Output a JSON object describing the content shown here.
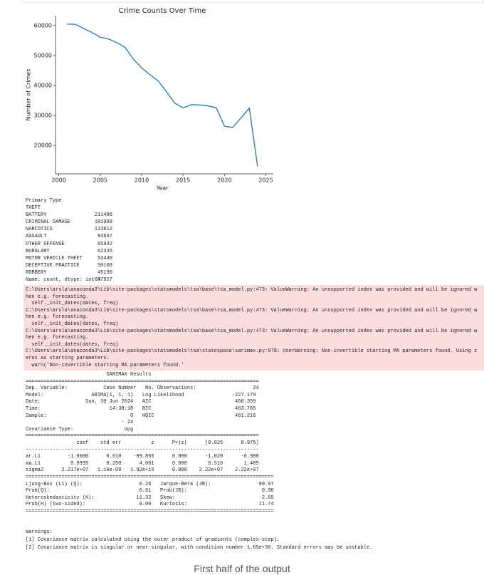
{
  "chart_data": {
    "type": "line",
    "title": "Crime Counts Over Time",
    "x_label": "Year",
    "y_label": "Number of Crimes",
    "x": [
      2001,
      2002,
      2003,
      2004,
      2005,
      2006,
      2007,
      2008,
      2009,
      2010,
      2011,
      2012,
      2013,
      2014,
      2015,
      2016,
      2017,
      2018,
      2019,
      2020,
      2021,
      2022,
      2023,
      2024
    ],
    "series": [
      {
        "name": "Crime Counts",
        "color": "#1f77b4",
        "values": [
          60500,
          60400,
          59000,
          57700,
          56100,
          55500,
          54300,
          52700,
          48800,
          45900,
          43600,
          41500,
          37900,
          34100,
          32500,
          33600,
          33500,
          33200,
          32600,
          26400,
          26000,
          29200,
          32400,
          13000
        ]
      }
    ],
    "xlim": [
      1999.6,
      2025.9
    ],
    "xticks": [
      2000,
      2005,
      2010,
      2015,
      2020,
      2025
    ],
    "ylim": [
      10500,
      63300
    ],
    "yticks": [
      20000,
      30000,
      40000,
      50000,
      60000
    ],
    "grid": false
  },
  "primary_type": {
    "header": "Primary Type",
    "rows": [
      [
        "THEFT",
        211486
      ],
      [
        "BATTERY",
        181988
      ],
      [
        "CRIMINAL DAMAGE",
        113612
      ],
      [
        "NARCOTICS",
        93637
      ],
      [
        "ASSAULT",
        65932
      ],
      [
        "OTHER OFFENSE",
        62335
      ],
      [
        "BURGLARY",
        53440
      ],
      [
        "MOTOR VEHICLE THEFT",
        50109
      ],
      [
        "DECEPTIVE PRACTICE",
        45190
      ],
      [
        "ROBBERY",
        37927
      ]
    ],
    "footer": "Name: count, dtype: int64"
  },
  "stderr": {
    "lines": [
      "C:\\Users\\arsla\\anaconda3\\Lib\\site-packages\\statsmodels\\tsa\\base\\tsa_model.py:473: ValueWarning: An unsupported index was provided and will be ignored w",
      "hen e.g. forecasting.",
      "  self._init_dates(dates, freq)",
      "C:\\Users\\arsla\\anaconda3\\Lib\\site-packages\\statsmodels\\tsa\\base\\tsa_model.py:473: ValueWarning: An unsupported index was provided and will be ignored w",
      "hen e.g. forecasting.",
      "  self._init_dates(dates, freq)",
      "C:\\Users\\arsla\\anaconda3\\Lib\\site-packages\\statsmodels\\tsa\\base\\tsa_model.py:473: ValueWarning: An unsupported index was provided and will be ignored w",
      "hen e.g. forecasting.",
      "  self._init_dates(dates, freq)",
      "C:\\Users\\arsla\\anaconda3\\Lib\\site-packages\\statsmodels\\tsa\\statespace\\sarimax.py:978: UserWarning: Non-invertible starting MA parameters found. Using z",
      "eros as starting parameters.",
      "  warn('Non-invertible starting MA parameters found.'"
    ]
  },
  "sarimax": {
    "lines": [
      "                           SARIMAX Results",
      "==============================================================================",
      "Dep. Variable:            Case Number   No. Observations:                   24",
      "Model:                ARIMA(1, 1, 1)   Log Likelihood                -227.179",
      "Date:               Sun, 30 Jun 2024   AIC                            460.359",
      "Time:                       14:38:18   BIC                            463.765",
      "Sample:                            0   HQIC                           461.216",
      "                                - 24",
      "Covariance Type:                 opg",
      "==============================================================================",
      "                 coef    std err          z      P>|z|      [0.025      0.975]",
      "------------------------------------------------------------------------------",
      "ar.L1         -1.0000      0.010    -99.855      0.000      -1.020      -0.980",
      "ma.L1          0.9995      0.250      4.001      0.000       0.510       1.489",
      "sigma2      2.217e+07   1.16e-08   1.92e+15      0.000    2.22e+07    2.22e+07",
      "===================================================================================",
      "Ljung-Box (L1) (Q):                   0.26   Jarque-Bera (JB):                99.97",
      "Prob(Q):                              0.61   Prob(JB):                         0.00",
      "Heteroskedasticity (H):              11.32   Skew:                            -2.65",
      "Prob(H) (two-sided):                  0.00   Kurtosis:                        11.74",
      "==================================================================================="
    ]
  },
  "warnings": {
    "title": "Warnings:",
    "items": [
      "[1] Covariance matrix calculated using the outer product of gradients (complex-step).",
      "[2] Covariance matrix is singular or near-singular, with condition number 1.65e+30. Standard errors may be unstable."
    ]
  },
  "caption": "First half of the output"
}
